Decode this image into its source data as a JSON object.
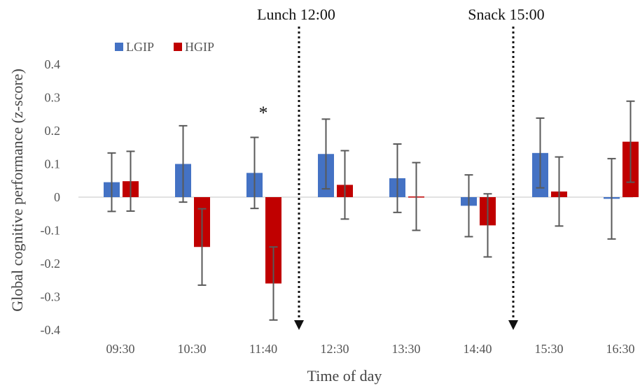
{
  "chart_data": {
    "type": "bar",
    "xlabel": "Time of day",
    "ylabel": "Global cognitive performance (z-score)",
    "categories": [
      "09:30",
      "10:30",
      "11:40",
      "12:30",
      "13:30",
      "14:40",
      "15:30",
      "16:30"
    ],
    "ylim": [
      -0.4,
      0.4
    ],
    "yticks": [
      -0.4,
      -0.3,
      -0.2,
      -0.1,
      0,
      0.1,
      0.2,
      0.3,
      0.4
    ],
    "ytick_labels": [
      "-0.4",
      "-0.3",
      "-0.2",
      "-0.1",
      "0",
      "0.1",
      "0.2",
      "0.3",
      "0.4"
    ],
    "grid": false,
    "legend": "top-left",
    "series": [
      {
        "name": "LGIP",
        "color": "#4472C4",
        "values": [
          0.045,
          0.1,
          0.073,
          0.13,
          0.057,
          -0.026,
          0.133,
          -0.005
        ],
        "error": [
          0.088,
          0.115,
          0.107,
          0.105,
          0.103,
          0.093,
          0.105,
          0.121
        ]
      },
      {
        "name": "HGIP",
        "color": "#C00000",
        "values": [
          0.048,
          -0.15,
          -0.26,
          0.037,
          0.002,
          -0.085,
          0.017,
          0.167
        ],
        "error": [
          0.09,
          0.115,
          0.11,
          0.103,
          0.102,
          0.095,
          0.104,
          0.122
        ]
      }
    ],
    "annotations": [
      {
        "text": "Lunch 12:00",
        "between_categories": [
          2,
          3
        ]
      },
      {
        "text": "Snack 15:00",
        "between_categories": [
          5,
          6
        ]
      },
      {
        "text": "*",
        "category_index": 2
      }
    ]
  }
}
